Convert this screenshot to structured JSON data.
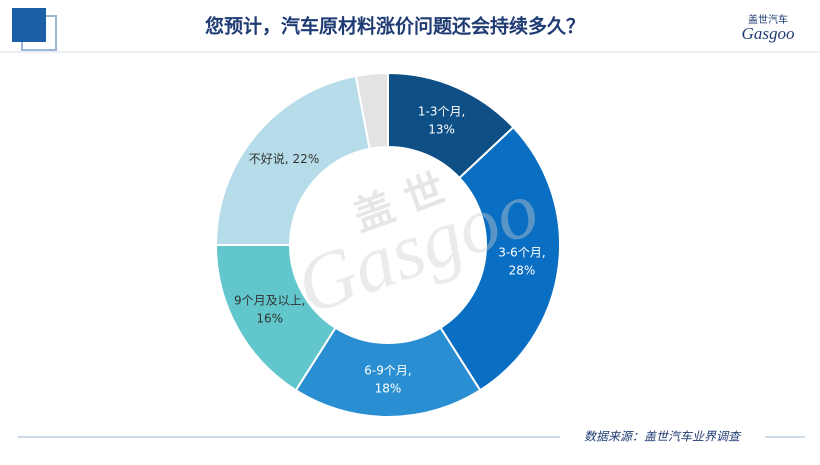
{
  "header": {
    "title": "您预计，汽车原材料涨价问题还会持续多久？",
    "logo_cn": "盖世汽车",
    "logo_en": "Gasgoo"
  },
  "watermark": {
    "cn": "盖 世",
    "en": "Gasgoo"
  },
  "chart_data": {
    "type": "donut",
    "categories": [
      "1-3个月,",
      "3-6个月,",
      "6-9个月,",
      "9个月及以上,",
      "不好说,",
      null
    ],
    "values": [
      13,
      28,
      18,
      16,
      22,
      3
    ],
    "value_labels": [
      "13%",
      "28%",
      "18%",
      "16%",
      "22%",
      null
    ],
    "colors": [
      "#0e4f86",
      "#0a6fc2",
      "#2a8fd2",
      "#62c7cc",
      "#b5dce8",
      "#e3e3e3"
    ],
    "label_colors": [
      "#ffffff",
      "#ffffff",
      "#ffffff",
      "#333333",
      "#333333",
      null
    ]
  },
  "footer": {
    "source": "数据来源：盖世汽车业界调查"
  }
}
